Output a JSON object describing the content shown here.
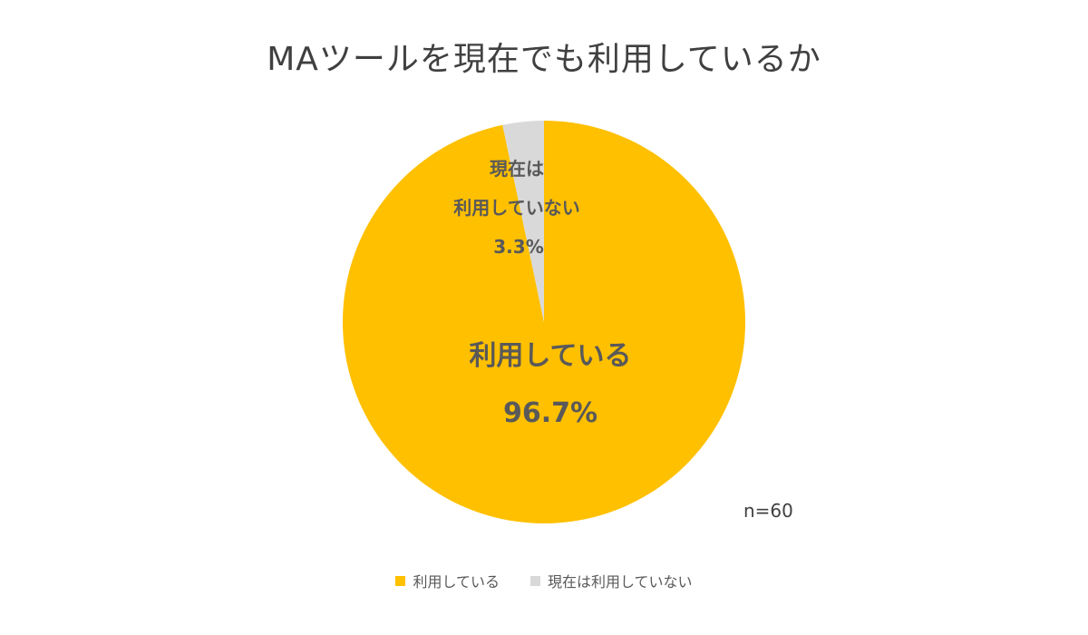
{
  "chart_data": {
    "type": "pie",
    "title": "MAツールを現在でも利用しているか",
    "slices": [
      {
        "name": "利用している",
        "value": 96.7,
        "label_lines": [
          "利用している",
          "96.7%"
        ],
        "color": "#FFC000"
      },
      {
        "name": "現在は利用していない",
        "value": 3.3,
        "label_lines": [
          "現在は",
          "利用していない",
          "3.3%"
        ],
        "color": "#D9D9D9"
      }
    ],
    "sample_size": "n=60",
    "legend": {
      "placement": "bottom",
      "entries": [
        "利用している",
        "現在は利用していない"
      ]
    }
  }
}
